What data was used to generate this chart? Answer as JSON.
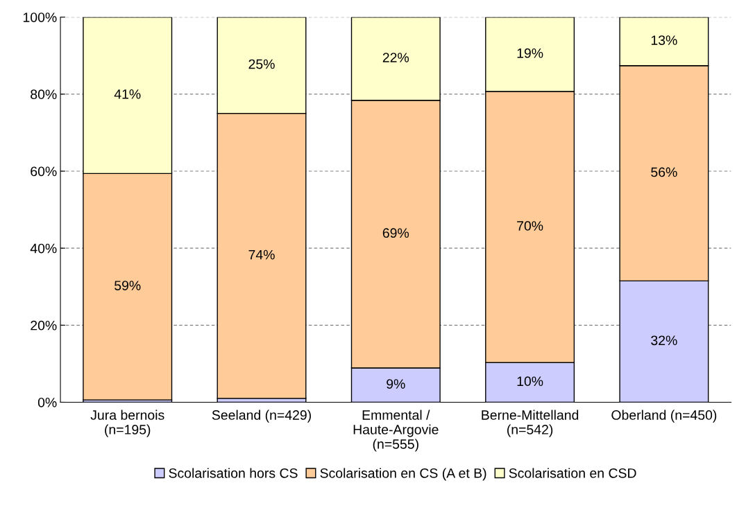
{
  "chart_data": {
    "type": "bar",
    "stacked": true,
    "categories": [
      "Jura bernois\n(n=195)",
      "Seeland (n=429)",
      "Emmental /\nHaute-Argovie\n(n=555)",
      "Berne-Mittelland\n(n=542)",
      "Oberland (n=450)"
    ],
    "series": [
      {
        "name": "Scolarisation hors CS",
        "color": "#ccccff",
        "values": [
          0.6,
          1,
          8.9,
          10.3,
          31.5
        ],
        "value_labels": [
          null,
          null,
          "9%",
          "10%",
          "32%"
        ]
      },
      {
        "name": "Scolarisation en CS (A et B)",
        "color": "#ffcc99",
        "values": [
          58.8,
          74,
          69.5,
          70.4,
          55.9
        ],
        "value_labels": [
          "59%",
          "74%",
          "69%",
          "70%",
          "56%"
        ]
      },
      {
        "name": "Scolarisation en CSD",
        "color": "#ffffcc",
        "values": [
          40.6,
          25,
          21.6,
          19.3,
          12.6
        ],
        "value_labels": [
          "41%",
          "25%",
          "22%",
          "19%",
          "13%"
        ]
      }
    ],
    "ylim": [
      0,
      100
    ],
    "yticks": [
      {
        "value": 0,
        "label": "0%"
      },
      {
        "value": 20,
        "label": "20%"
      },
      {
        "value": 40,
        "label": "40%"
      },
      {
        "value": 60,
        "label": "60%"
      },
      {
        "value": 80,
        "label": "80%"
      },
      {
        "value": 100,
        "label": "100%"
      }
    ],
    "grid": "y",
    "legend": "bottom"
  }
}
